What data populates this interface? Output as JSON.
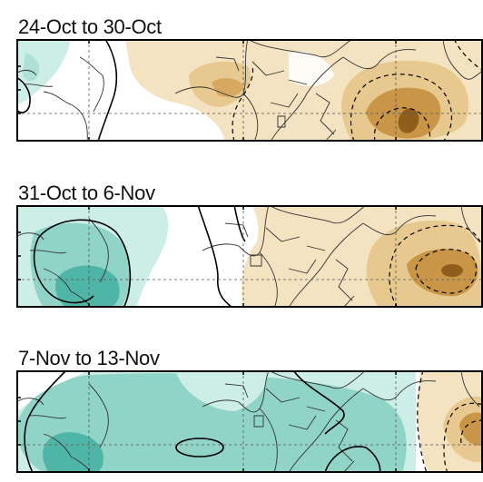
{
  "panels": [
    {
      "title": "24-Oct to 30-Oct"
    },
    {
      "title": "31-Oct to 6-Nov"
    },
    {
      "title": "7-Nov to 13-Nov"
    }
  ],
  "colors": {
    "dry_light": "#f3e3c0",
    "dry_mid": "#e7c88e",
    "dry_strong": "#c89646",
    "dry_darkest": "#8f5d1c",
    "wet_light": "#cdeee6",
    "wet_mid": "#8fd4c6",
    "wet_strong": "#4fb5a6",
    "coast": "#333333",
    "contour": "#000000",
    "frame": "#000000"
  }
}
